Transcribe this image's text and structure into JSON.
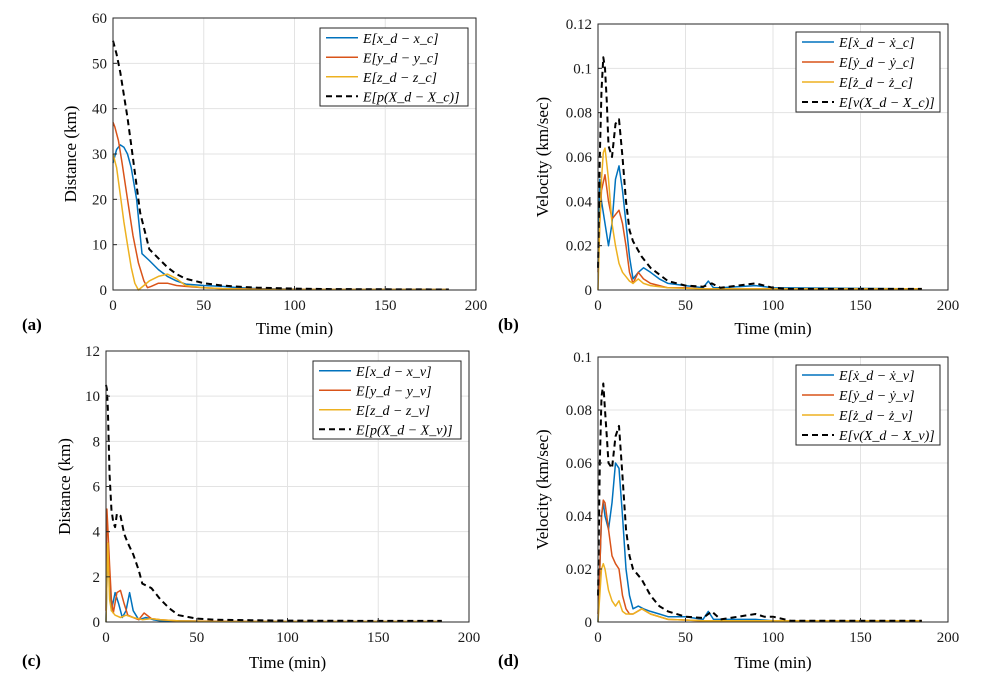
{
  "chart_data": [
    {
      "panel": "(a)",
      "type": "line",
      "xlabel": "Time (min)",
      "ylabel": "Distance (km)",
      "xlim": [
        0,
        200
      ],
      "ylim": [
        0,
        60
      ],
      "xticks": [
        0,
        50,
        100,
        150,
        200
      ],
      "yticks": [
        0,
        10,
        20,
        30,
        40,
        50,
        60
      ],
      "grid": true,
      "legend_position": "top-right",
      "series": [
        {
          "name": "E[x_d − x_c]",
          "color": "#0072BD",
          "dash": "solid",
          "x": [
            0,
            2,
            4,
            6,
            8,
            10,
            13,
            16,
            20,
            25,
            30,
            35,
            40,
            50,
            60,
            70,
            80,
            100,
            120,
            150,
            185
          ],
          "y": [
            28,
            31,
            32,
            31.5,
            30,
            27,
            20,
            8,
            6.5,
            4.5,
            3,
            2,
            1.3,
            1,
            0.8,
            0.5,
            0.3,
            0.2,
            0.1,
            0.1,
            0.1
          ]
        },
        {
          "name": "E[y_d − y_c]",
          "color": "#D95319",
          "dash": "solid",
          "x": [
            0,
            1,
            3,
            5,
            8,
            11,
            14,
            17,
            19,
            21,
            25,
            30,
            35,
            40,
            50,
            60,
            80,
            120,
            185
          ],
          "y": [
            37,
            36,
            33,
            28,
            20,
            12,
            6,
            2,
            0.5,
            0.8,
            1.5,
            1.5,
            1,
            0.8,
            0.5,
            0.3,
            0.2,
            0.1,
            0.1
          ]
        },
        {
          "name": "E[z_d − z_c]",
          "color": "#EDB120",
          "dash": "solid",
          "x": [
            0,
            2,
            4,
            6,
            8,
            10,
            12,
            14,
            17,
            20,
            25,
            30,
            35,
            40,
            50,
            60,
            80,
            120,
            185
          ],
          "y": [
            30,
            27,
            21,
            15,
            10,
            5,
            1.5,
            0,
            1,
            2,
            3,
            3.5,
            2.5,
            1,
            0.5,
            0.3,
            0.1,
            0.1,
            0.1
          ]
        },
        {
          "name": "E[p(X_d − X_c)]",
          "color": "#000000",
          "dash": "dashed",
          "x": [
            0,
            1,
            2,
            4,
            6,
            8,
            10,
            12,
            15,
            20,
            25,
            30,
            35,
            40,
            50,
            60,
            70,
            80,
            100,
            120,
            150,
            185
          ],
          "y": [
            55,
            53.5,
            52,
            48,
            43,
            38,
            32,
            26,
            17,
            9,
            7,
            5,
            3.5,
            2.5,
            1.5,
            1,
            0.7,
            0.5,
            0.3,
            0.2,
            0.15,
            0.1
          ]
        }
      ]
    },
    {
      "panel": "(b)",
      "type": "line",
      "xlabel": "Time (min)",
      "ylabel": "Velocity (km/sec)",
      "xlim": [
        0,
        200
      ],
      "ylim": [
        0,
        0.12
      ],
      "xticks": [
        0,
        50,
        100,
        150,
        200
      ],
      "yticks": [
        0,
        0.02,
        0.04,
        0.06,
        0.08,
        0.1,
        0.12
      ],
      "grid": true,
      "legend_position": "top-right",
      "series": [
        {
          "name": "E[ẋ_d − ẋ_c]",
          "color": "#0072BD",
          "dash": "solid",
          "x": [
            0,
            1,
            2,
            4,
            6,
            8,
            10,
            12,
            14,
            16,
            18,
            20,
            23,
            26,
            30,
            35,
            40,
            50,
            60,
            63,
            66,
            70,
            90,
            100,
            185
          ],
          "y": [
            0.01,
            0.05,
            0.04,
            0.03,
            0.02,
            0.03,
            0.05,
            0.056,
            0.045,
            0.03,
            0.015,
            0.005,
            0.008,
            0.01,
            0.008,
            0.005,
            0.003,
            0.002,
            0.001,
            0.004,
            0.001,
            0.001,
            0.002,
            0.001,
            0.0005
          ]
        },
        {
          "name": "E[ẏ_d − ẏ_c]",
          "color": "#D95319",
          "dash": "solid",
          "x": [
            0,
            1,
            2,
            4,
            6,
            8,
            10,
            12,
            14,
            16,
            18,
            20,
            23,
            26,
            30,
            35,
            40,
            50,
            60,
            185
          ],
          "y": [
            0.008,
            0.03,
            0.045,
            0.052,
            0.04,
            0.032,
            0.034,
            0.036,
            0.03,
            0.02,
            0.008,
            0.003,
            0.008,
            0.005,
            0.003,
            0.002,
            0.001,
            0.001,
            0.0005,
            0.0005
          ]
        },
        {
          "name": "E[ż_d − ż_c]",
          "color": "#EDB120",
          "dash": "solid",
          "x": [
            0,
            1,
            2,
            3,
            4,
            6,
            8,
            10,
            12,
            14,
            16,
            18,
            20,
            23,
            26,
            30,
            40,
            60,
            185
          ],
          "y": [
            0.0,
            0.03,
            0.05,
            0.062,
            0.064,
            0.05,
            0.03,
            0.02,
            0.012,
            0.008,
            0.006,
            0.004,
            0.003,
            0.005,
            0.003,
            0.002,
            0.001,
            0.0005,
            0.0005
          ]
        },
        {
          "name": "E[v(X_d − X_c)]",
          "color": "#000000",
          "dash": "dashed",
          "x": [
            0,
            1,
            2,
            3,
            4,
            5,
            6,
            8,
            10,
            12,
            14,
            16,
            18,
            20,
            25,
            30,
            35,
            40,
            50,
            60,
            65,
            70,
            90,
            95,
            100,
            110,
            185
          ],
          "y": [
            0.01,
            0.06,
            0.09,
            0.105,
            0.1,
            0.085,
            0.065,
            0.06,
            0.075,
            0.077,
            0.06,
            0.04,
            0.027,
            0.022,
            0.015,
            0.01,
            0.007,
            0.004,
            0.002,
            0.0015,
            0.003,
            0.001,
            0.003,
            0.002,
            0.001,
            0.0005,
            0.0005
          ]
        }
      ]
    },
    {
      "panel": "(c)",
      "type": "line",
      "xlabel": "Time (min)",
      "ylabel": "Distance (km)",
      "xlim": [
        0,
        200
      ],
      "ylim": [
        0,
        12
      ],
      "xticks": [
        0,
        50,
        100,
        150,
        200
      ],
      "yticks": [
        0,
        2,
        4,
        6,
        8,
        10,
        12
      ],
      "grid": true,
      "legend_position": "top-right",
      "series": [
        {
          "name": "E[x_d − x_v]",
          "color": "#0072BD",
          "dash": "solid",
          "x": [
            0,
            1,
            2,
            3,
            5,
            7,
            9,
            11,
            13,
            15,
            18,
            22,
            26,
            30,
            40,
            60,
            100,
            185
          ],
          "y": [
            0,
            3.5,
            2,
            0.5,
            1.3,
            0.8,
            0.2,
            0.5,
            1.3,
            0.5,
            0.1,
            0.2,
            0.1,
            0.05,
            0.05,
            0.02,
            0.02,
            0.02
          ]
        },
        {
          "name": "E[y_d − y_v]",
          "color": "#D95319",
          "dash": "solid",
          "x": [
            0,
            0.5,
            1,
            2,
            3,
            4,
            6,
            8,
            10,
            12,
            15,
            18,
            21,
            25,
            30,
            40,
            60,
            100,
            185
          ],
          "y": [
            0.5,
            5.0,
            4.2,
            2.5,
            1.0,
            0.4,
            1.3,
            1.4,
            0.8,
            0.3,
            0.2,
            0.1,
            0.4,
            0.15,
            0.1,
            0.05,
            0.03,
            0.02,
            0.02
          ]
        },
        {
          "name": "E[z_d − z_v]",
          "color": "#EDB120",
          "dash": "solid",
          "x": [
            0,
            1,
            2,
            3,
            5,
            8,
            11,
            15,
            20,
            25,
            30,
            40,
            60,
            100,
            185
          ],
          "y": [
            0,
            3.5,
            1.0,
            0.5,
            0.3,
            0.2,
            0.3,
            0.2,
            0.1,
            0.15,
            0.1,
            0.05,
            0.02,
            0.02,
            0.02
          ]
        },
        {
          "name": "E[p(X_d − X_v)]",
          "color": "#000000",
          "dash": "dashed",
          "x": [
            0,
            0.5,
            1,
            2,
            3,
            4,
            5,
            6,
            8,
            10,
            12,
            15,
            18,
            20,
            25,
            30,
            35,
            40,
            50,
            60,
            80,
            100,
            150,
            185
          ],
          "y": [
            10.5,
            10.3,
            9.5,
            6.5,
            5.0,
            4.4,
            4.2,
            4.8,
            4.7,
            3.9,
            3.5,
            3.0,
            2.3,
            1.7,
            1.5,
            1.0,
            0.6,
            0.3,
            0.15,
            0.1,
            0.08,
            0.06,
            0.05,
            0.05
          ]
        }
      ]
    },
    {
      "panel": "(d)",
      "type": "line",
      "xlabel": "Time (min)",
      "ylabel": "Velocity (km/sec)",
      "xlim": [
        0,
        200
      ],
      "ylim": [
        0,
        0.1
      ],
      "xticks": [
        0,
        50,
        100,
        150,
        200
      ],
      "yticks": [
        0,
        0.02,
        0.04,
        0.06,
        0.08,
        0.1
      ],
      "grid": true,
      "legend_position": "top-right",
      "series": [
        {
          "name": "E[ẋ_d − ẋ_v]",
          "color": "#0072BD",
          "dash": "solid",
          "x": [
            0,
            1,
            2,
            3,
            4,
            6,
            8,
            10,
            12,
            14,
            16,
            18,
            20,
            23,
            26,
            30,
            35,
            40,
            50,
            60,
            63,
            66,
            70,
            90,
            100,
            185
          ],
          "y": [
            0.0,
            0.02,
            0.04,
            0.045,
            0.04,
            0.035,
            0.045,
            0.06,
            0.058,
            0.04,
            0.02,
            0.01,
            0.005,
            0.006,
            0.005,
            0.004,
            0.003,
            0.002,
            0.002,
            0.001,
            0.004,
            0.001,
            0.001,
            0.001,
            0.0005,
            0.0005
          ]
        },
        {
          "name": "E[ẏ_d − ẏ_v]",
          "color": "#D95319",
          "dash": "solid",
          "x": [
            0,
            1,
            2,
            3,
            4,
            6,
            8,
            10,
            12,
            14,
            16,
            18,
            20,
            25,
            30,
            40,
            60,
            185
          ],
          "y": [
            0.003,
            0.02,
            0.04,
            0.046,
            0.045,
            0.035,
            0.025,
            0.022,
            0.02,
            0.01,
            0.005,
            0.003,
            0.003,
            0.005,
            0.003,
            0.001,
            0.0005,
            0.0005
          ]
        },
        {
          "name": "E[ż_d − ż_v]",
          "color": "#EDB120",
          "dash": "solid",
          "x": [
            0,
            1,
            2,
            3,
            4,
            6,
            8,
            10,
            12,
            14,
            16,
            20,
            25,
            30,
            40,
            60,
            185
          ],
          "y": [
            0.0,
            0.01,
            0.02,
            0.022,
            0.02,
            0.012,
            0.008,
            0.006,
            0.008,
            0.004,
            0.003,
            0.003,
            0.005,
            0.003,
            0.001,
            0.0005,
            0.0005
          ]
        },
        {
          "name": "E[v(X_d − X_v)]",
          "color": "#000000",
          "dash": "dashed",
          "x": [
            0,
            1,
            2,
            3,
            4,
            5,
            6,
            8,
            10,
            12,
            14,
            16,
            18,
            20,
            25,
            30,
            35,
            40,
            50,
            60,
            65,
            70,
            90,
            95,
            100,
            110,
            185
          ],
          "y": [
            0.01,
            0.06,
            0.085,
            0.09,
            0.08,
            0.07,
            0.06,
            0.058,
            0.07,
            0.074,
            0.055,
            0.035,
            0.025,
            0.02,
            0.016,
            0.01,
            0.006,
            0.004,
            0.002,
            0.0015,
            0.004,
            0.001,
            0.003,
            0.002,
            0.002,
            0.0005,
            0.0005
          ]
        }
      ]
    }
  ]
}
